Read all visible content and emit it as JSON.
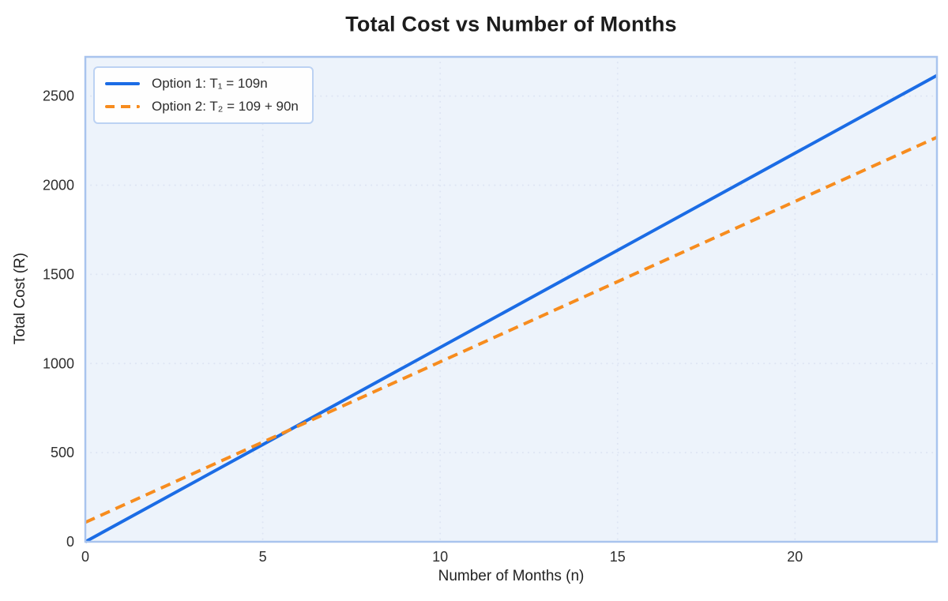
{
  "figure": {
    "title": "Total Cost vs Number of Months"
  },
  "chart_data": {
    "type": "line",
    "title": "Total Cost vs Number of Months",
    "xlabel": "Number of Months (n)",
    "ylabel": "Total Cost (R)",
    "xlim": [
      0,
      24
    ],
    "ylim": [
      0,
      2720
    ],
    "xticks": [
      0,
      5,
      10,
      15,
      20
    ],
    "yticks": [
      0,
      500,
      1000,
      1500,
      2000,
      2500
    ],
    "grid": true,
    "grid_style": "dotted",
    "legend_position": "upper-left",
    "series": [
      {
        "name": "Option 1: T₁ = 109n",
        "style": "solid",
        "color": "#1b6ce5",
        "points": [
          [
            0,
            0
          ],
          [
            24,
            2616
          ]
        ]
      },
      {
        "name": "Option 2: T₂ = 109 + 90n",
        "style": "dashed",
        "color": "#f78c1e",
        "points": [
          [
            0,
            109
          ],
          [
            24,
            2269
          ]
        ]
      }
    ],
    "colors": {
      "plot_background": "#edf3fb",
      "spine": "#a9c4ee",
      "grid": "#dde4f3",
      "tick_label": "#2e2e2e",
      "title": "#1c1c1c"
    }
  }
}
